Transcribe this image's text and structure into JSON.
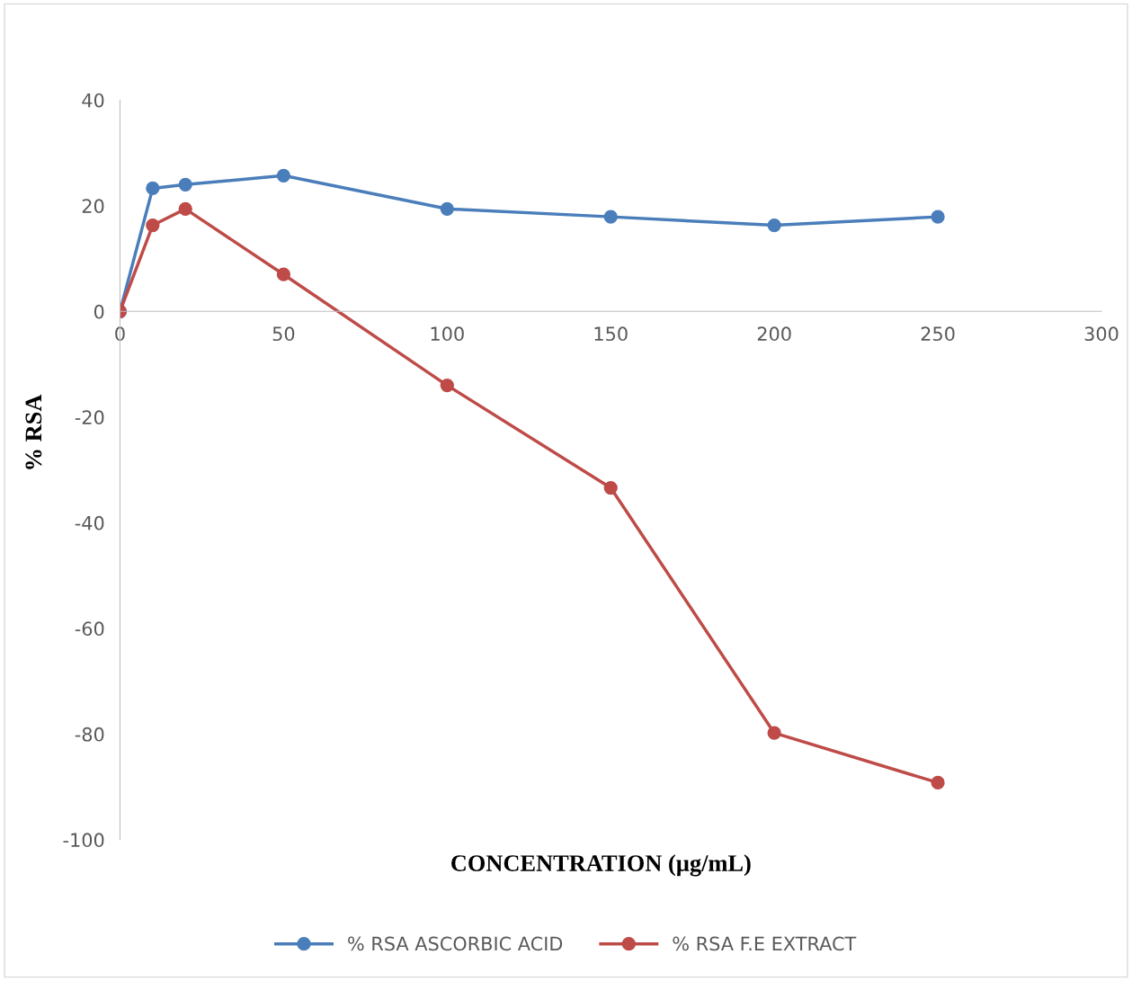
{
  "chart_data": {
    "type": "line",
    "xlabel": "CONCENTRATION (µg/mL)",
    "ylabel": "% RSA",
    "x": [
      0,
      10,
      20,
      50,
      100,
      150,
      200,
      250
    ],
    "series": [
      {
        "name": "% RSA ASCORBIC ACID",
        "color": "#4a7ebb",
        "values": [
          0,
          23.3,
          24.0,
          25.7,
          19.4,
          17.9,
          16.3,
          17.9
        ]
      },
      {
        "name": "% RSA F.E EXTRACT",
        "color": "#be4b48",
        "values": [
          0,
          16.3,
          19.4,
          7.0,
          -14.0,
          -33.4,
          -79.8,
          -89.2
        ]
      }
    ],
    "xlim": [
      0,
      300
    ],
    "xticks": [
      0,
      50,
      100,
      150,
      200,
      250,
      300
    ],
    "ylim": [
      -100,
      40
    ],
    "yticks": [
      -100,
      -80,
      -60,
      -40,
      -20,
      0,
      20,
      40
    ],
    "grid": false,
    "legend": "bottom",
    "marker": "circle",
    "line_style": "solid"
  }
}
